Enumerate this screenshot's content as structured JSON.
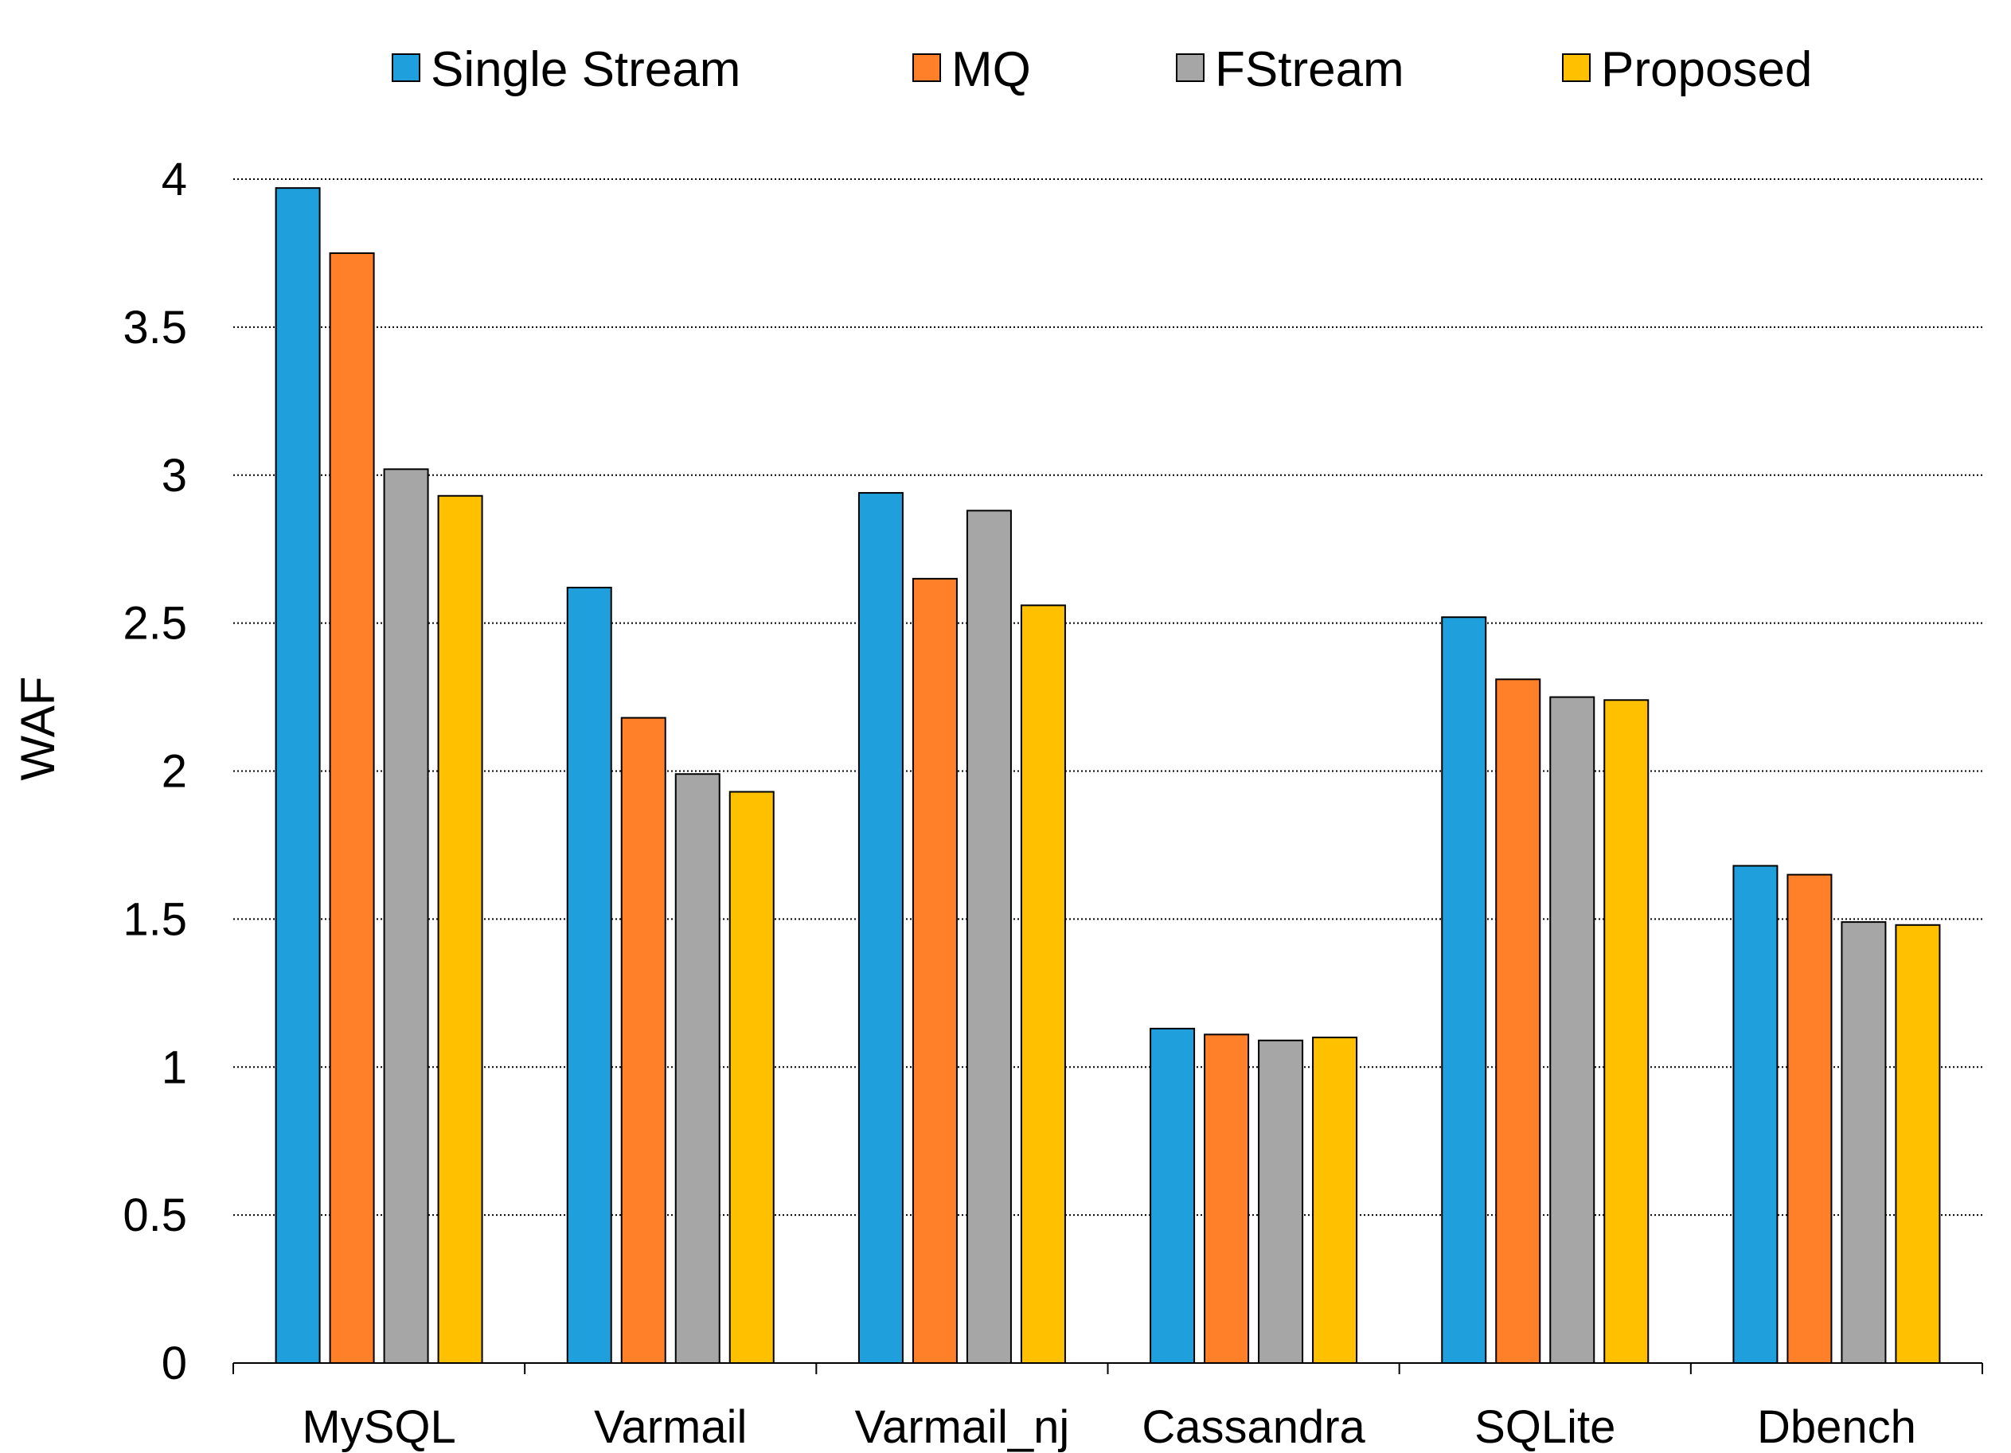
{
  "chart_data": {
    "type": "bar",
    "title": "",
    "xlabel": "",
    "ylabel": "WAF",
    "ylim": [
      0,
      4
    ],
    "ytick_step": 0.5,
    "yticks": [
      "0",
      "0.5",
      "1",
      "1.5",
      "2",
      "2.5",
      "3",
      "3.5",
      "4"
    ],
    "grid": true,
    "legend_position": "top",
    "categories": [
      "MySQL",
      "Varmail",
      "Varmail_nj",
      "Cassandra",
      "SQLite",
      "Dbench"
    ],
    "series": [
      {
        "name": "Single Stream",
        "color": "#1F9FDB",
        "values": [
          3.97,
          2.62,
          2.94,
          1.13,
          2.52,
          1.68
        ]
      },
      {
        "name": "MQ",
        "color": "#FF8029",
        "values": [
          3.75,
          2.18,
          2.65,
          1.11,
          2.31,
          1.65
        ]
      },
      {
        "name": "FStream",
        "color": "#A6A6A6",
        "values": [
          3.02,
          1.99,
          2.88,
          1.09,
          2.25,
          1.49
        ]
      },
      {
        "name": "Proposed",
        "color": "#FFC000",
        "values": [
          2.93,
          1.93,
          2.56,
          1.1,
          2.24,
          1.48
        ]
      }
    ]
  }
}
